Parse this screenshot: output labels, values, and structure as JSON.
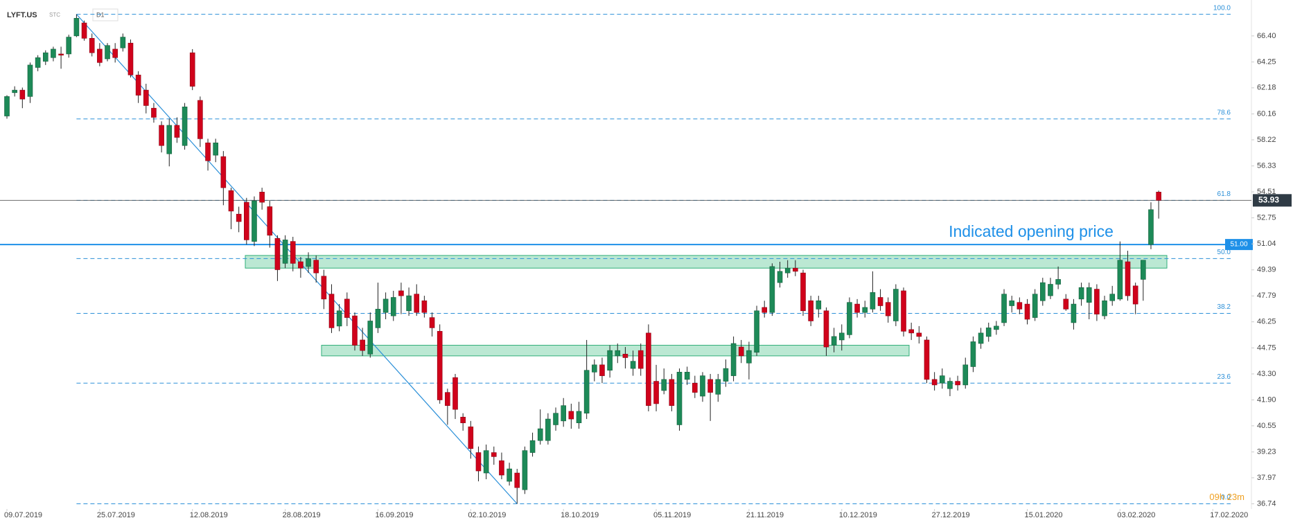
{
  "chart_data": {
    "type": "candlestick",
    "symbol": "LYFT.US",
    "source": "STC",
    "timeframe": "D1",
    "log_scale": true,
    "up_color": "#1d8a58",
    "down_color": "#d0021b",
    "ylim": [
      36.5,
      69.0
    ],
    "yticks": [
      {
        "value": 66.4,
        "label": "66.40"
      },
      64.25,
      62.18,
      60.16,
      58.22,
      56.33,
      54.51,
      52.75,
      51.04,
      49.39,
      47.79,
      46.25,
      44.75,
      {
        "value": 43.3,
        "label": "43.30"
      },
      {
        "value": 41.9,
        "label": "41.90"
      },
      40.55,
      39.23,
      37.97,
      36.74
    ],
    "fib_levels": [
      {
        "value": 68.24,
        "label": "100.0"
      },
      {
        "value": 59.78,
        "label": "78.6"
      },
      {
        "value": 53.93,
        "label": "61.8"
      },
      {
        "value": 50.1,
        "label": "50.0"
      },
      {
        "value": 46.75,
        "label": "38.2"
      },
      {
        "value": 42.8,
        "label": "23.6"
      },
      {
        "value": 36.74,
        "label": "0.0"
      }
    ],
    "last_price": 53.93,
    "marked_level": {
      "value": 51,
      "label": "51.00"
    },
    "annotation": "Indicated opening price",
    "countdown": "09h 23m",
    "zones": [
      {
        "high": 50.3,
        "low": 49.5
      },
      {
        "high": 44.9,
        "low": 44.3
      }
    ],
    "categories": [
      "09.07.2019",
      null,
      null,
      null,
      null,
      null,
      null,
      null,
      null,
      null,
      null,
      null,
      "25.07.2019",
      null,
      null,
      null,
      null,
      null,
      null,
      null,
      null,
      null,
      null,
      null,
      "12.08.2019",
      null,
      null,
      null,
      null,
      null,
      null,
      null,
      null,
      null,
      null,
      null,
      "28.08.2019",
      null,
      null,
      null,
      null,
      null,
      null,
      null,
      null,
      null,
      null,
      null,
      "16.09.2019",
      null,
      null,
      null,
      null,
      null,
      null,
      null,
      null,
      null,
      null,
      null,
      "02.10.2019",
      null,
      null,
      null,
      null,
      null,
      null,
      null,
      null,
      null,
      null,
      null,
      "18.10.2019",
      null,
      null,
      null,
      null,
      null,
      null,
      null,
      null,
      null,
      null,
      null,
      "05.11.2019",
      null,
      null,
      null,
      null,
      null,
      null,
      null,
      null,
      null,
      null,
      null,
      "21.11.2019",
      null,
      null,
      null,
      null,
      null,
      null,
      null,
      null,
      null,
      null,
      null,
      "10.12.2019",
      null,
      null,
      null,
      null,
      null,
      null,
      null,
      null,
      null,
      null,
      null,
      "27.12.2019",
      null,
      null,
      null,
      null,
      null,
      null,
      null,
      null,
      null,
      null,
      null,
      "15.01.2020",
      null,
      null,
      null,
      null,
      null,
      null,
      null,
      null,
      null,
      null,
      null,
      "03.02.2020",
      null,
      null,
      null,
      null,
      null,
      null,
      null,
      null,
      null,
      null,
      null,
      "17.02.2020"
    ],
    "open": [
      60.0,
      61.8,
      62.0,
      61.5,
      63.8,
      64.3,
      64.6,
      64.9,
      64.9,
      66.4,
      67.5,
      66.2,
      65.3,
      64.5,
      65.3,
      65.4,
      65.8,
      63.2,
      62.0,
      60.6,
      59.3,
      57.2,
      59.3,
      57.8,
      65.0,
      61.2,
      58.0,
      57.1,
      57.0,
      54.6,
      53.0,
      53.8,
      51.2,
      54.5,
      53.5,
      51.4,
      49.8,
      51.2,
      49.9,
      49.6,
      50.0,
      49.0,
      47.9,
      46.0,
      47.6,
      46.6,
      45.2,
      44.4,
      45.9,
      46.8,
      46.6,
      48.1,
      46.9,
      47.9,
      47.5,
      46.5,
      45.7,
      42.3,
      43.1,
      41.0,
      40.5,
      39.2,
      38.2,
      39.2,
      38.8,
      37.8,
      38.2,
      37.4,
      39.2,
      39.8,
      39.8,
      40.6,
      40.8,
      41.3,
      40.7,
      41.2,
      43.4,
      43.8,
      43.5,
      44.3,
      44.4,
      43.6,
      44.6,
      45.6,
      42.9,
      42.4,
      43.0,
      40.6,
      43.0,
      42.8,
      42.1,
      43.0,
      42.2,
      42.9,
      43.2,
      44.8,
      43.9,
      44.5,
      47.1,
      46.8,
      48.6,
      49.2,
      49.5,
      49.2,
      47.5,
      47.0,
      46.9,
      44.9,
      45.2,
      45.5,
      47.3,
      46.8,
      47.0,
      47.7,
      47.4,
      46.3,
      48.1,
      45.8,
      45.6,
      45.2,
      43.0,
      42.8,
      42.5,
      42.9,
      42.7,
      43.7,
      45.0,
      45.4,
      45.8,
      46.2,
      47.2,
      47.4,
      47.3,
      46.5,
      47.5,
      47.8,
      48.5,
      47.6,
      46.2,
      47.6,
      47.4,
      48.2,
      46.6,
      47.5,
      47.6,
      49.9,
      48.4,
      48.8,
      51.0,
      54.5,
      null,
      null,
      null,
      null,
      null,
      null,
      null
    ],
    "high": [
      61.6,
      62.3,
      62.2,
      64.2,
      64.8,
      65.2,
      65.5,
      65.5,
      66.5,
      68.24,
      67.7,
      66.6,
      65.8,
      65.8,
      65.8,
      66.6,
      66.1,
      63.5,
      62.5,
      61.0,
      59.6,
      59.8,
      59.9,
      61.0,
      65.3,
      61.5,
      58.3,
      58.3,
      57.4,
      54.8,
      53.5,
      54.1,
      54.2,
      54.8,
      53.9,
      51.6,
      51.6,
      51.5,
      50.2,
      50.5,
      50.3,
      49.4,
      48.5,
      47.3,
      48.0,
      46.8,
      45.9,
      46.8,
      48.6,
      48.0,
      48.1,
      48.6,
      48.3,
      48.5,
      47.8,
      46.8,
      46.1,
      42.5,
      43.3,
      41.2,
      40.8,
      39.5,
      39.6,
      39.5,
      39.2,
      38.7,
      38.4,
      39.5,
      40.2,
      41.4,
      41.2,
      41.5,
      42.0,
      41.7,
      41.8,
      45.2,
      44.1,
      44.2,
      44.9,
      45.0,
      44.8,
      44.6,
      45.0,
      46.1,
      43.8,
      43.6,
      43.3,
      43.6,
      43.7,
      43.2,
      43.4,
      43.3,
      43.3,
      44.1,
      45.4,
      45.2,
      45.1,
      47.2,
      47.5,
      49.8,
      49.9,
      50.0,
      50.0,
      49.4,
      47.8,
      47.8,
      47.1,
      45.9,
      46.1,
      47.7,
      47.6,
      47.5,
      49.3,
      48.2,
      47.7,
      48.5,
      48.3,
      46.2,
      46.0,
      45.4,
      43.4,
      43.6,
      43.1,
      43.2,
      44.2,
      45.4,
      45.9,
      46.2,
      46.3,
      48.2,
      47.8,
      47.7,
      47.6,
      48.2,
      48.9,
      48.9,
      49.6,
      47.9,
      47.6,
      48.6,
      48.6,
      48.5,
      47.8,
      48.4,
      51.2,
      50.6,
      48.6,
      50.0,
      53.8,
      54.6,
      null,
      null,
      null,
      null,
      null,
      null,
      null
    ],
    "low": [
      59.8,
      61.5,
      60.6,
      61.0,
      63.5,
      64.0,
      64.3,
      63.7,
      64.6,
      66.3,
      66.0,
      64.7,
      63.9,
      64.3,
      64.2,
      65.1,
      63.0,
      61.0,
      60.2,
      59.5,
      57.3,
      56.3,
      58.0,
      57.5,
      62.0,
      57.7,
      56.0,
      56.6,
      53.6,
      52.0,
      51.8,
      51.0,
      50.9,
      53.3,
      50.8,
      48.7,
      49.5,
      49.3,
      48.9,
      49.2,
      48.6,
      47.0,
      45.6,
      45.7,
      46.0,
      44.6,
      44.3,
      44.2,
      45.6,
      46.4,
      46.3,
      46.7,
      46.6,
      46.6,
      46.5,
      45.4,
      41.7,
      40.6,
      40.9,
      40.3,
      38.9,
      37.8,
      37.9,
      38.6,
      37.9,
      37.6,
      36.74,
      37.2,
      39.0,
      39.6,
      39.6,
      40.3,
      40.5,
      40.4,
      40.4,
      40.9,
      42.9,
      42.8,
      43.1,
      43.9,
      43.6,
      43.2,
      43.2,
      41.3,
      41.3,
      42.2,
      41.3,
      40.3,
      42.7,
      42.0,
      41.8,
      40.8,
      41.8,
      42.6,
      42.9,
      43.9,
      43.0,
      44.3,
      46.5,
      46.6,
      48.3,
      48.9,
      49.0,
      46.6,
      46.0,
      46.5,
      44.3,
      44.5,
      44.6,
      45.3,
      46.5,
      46.5,
      46.8,
      46.9,
      46.2,
      46.0,
      45.4,
      45.2,
      45.0,
      42.8,
      42.4,
      42.5,
      42.1,
      42.4,
      42.5,
      43.4,
      44.7,
      45.1,
      45.5,
      46.0,
      46.8,
      46.7,
      46.1,
      46.3,
      47.2,
      47.6,
      48.2,
      46.9,
      45.8,
      47.2,
      46.4,
      46.3,
      46.4,
      47.2,
      47.5,
      47.5,
      46.7,
      47.5,
      50.7,
      52.7,
      null,
      null,
      null,
      null,
      null,
      null,
      null
    ],
    "close": [
      61.5,
      62.0,
      61.3,
      64.0,
      64.6,
      65.0,
      65.3,
      64.8,
      66.3,
      67.9,
      66.2,
      65.0,
      64.2,
      65.6,
      64.6,
      66.3,
      63.2,
      61.6,
      60.8,
      59.9,
      57.8,
      59.3,
      58.4,
      60.7,
      62.3,
      58.3,
      56.7,
      58.0,
      54.8,
      53.2,
      52.5,
      51.3,
      53.9,
      53.8,
      51.6,
      49.4,
      51.3,
      49.8,
      49.5,
      50.1,
      49.2,
      47.6,
      45.9,
      46.9,
      46.5,
      44.9,
      44.6,
      46.3,
      47.0,
      47.6,
      47.7,
      47.8,
      47.8,
      46.8,
      46.8,
      45.9,
      41.9,
      41.6,
      41.4,
      40.7,
      39.4,
      38.3,
      39.3,
      39.0,
      38.1,
      38.4,
      37.5,
      39.3,
      39.8,
      40.4,
      40.9,
      41.2,
      41.6,
      40.9,
      41.3,
      43.5,
      43.8,
      43.2,
      44.6,
      44.6,
      44.2,
      44.0,
      43.6,
      41.6,
      41.7,
      43.0,
      41.6,
      43.4,
      43.4,
      42.3,
      43.2,
      42.3,
      43.0,
      43.6,
      45.0,
      44.3,
      44.6,
      46.9,
      46.8,
      49.6,
      49.3,
      49.5,
      49.3,
      46.9,
      46.3,
      47.5,
      44.8,
      45.4,
      45.6,
      47.4,
      46.8,
      47.1,
      48.0,
      47.2,
      46.6,
      48.2,
      45.7,
      45.6,
      45.4,
      43.0,
      42.7,
      43.2,
      42.9,
      42.7,
      43.8,
      45.1,
      45.6,
      45.9,
      46.0,
      47.9,
      47.5,
      47.0,
      46.4,
      47.9,
      48.6,
      48.5,
      48.8,
      47.0,
      47.3,
      48.3,
      48.3,
      46.7,
      47.5,
      47.9,
      50.0,
      47.8,
      47.3,
      50.0,
      53.3,
      53.93,
      null,
      null,
      null,
      null,
      null,
      null,
      null
    ]
  }
}
